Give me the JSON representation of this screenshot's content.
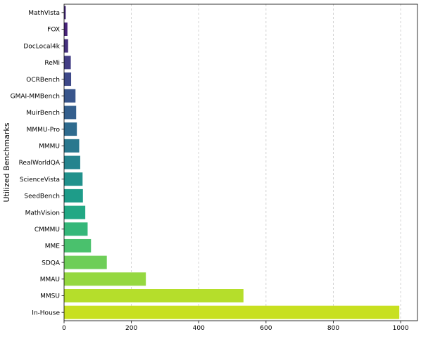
{
  "chart_data": {
    "type": "bar",
    "orientation": "horizontal",
    "title": "",
    "xlabel": "",
    "ylabel": "Utilized Benchmarks",
    "xlim": [
      0,
      1050
    ],
    "xticks": [
      0,
      200,
      400,
      600,
      800,
      1000
    ],
    "grid": "x",
    "legend": "none",
    "palette": "viridis",
    "categories": [
      "MathVista",
      "FOX",
      "DocLocal4k",
      "ReMi",
      "OCRBench",
      "GMAI-MMBench",
      "MuirBench",
      "MMMU-Pro",
      "MMMU",
      "RealWorldQA",
      "ScienceVista",
      "SeedBench",
      "MathVision",
      "CMMMU",
      "MME",
      "SDQA",
      "MMAU",
      "MMSU",
      "In-House"
    ],
    "values": [
      5,
      10,
      12,
      20,
      21,
      34,
      36,
      38,
      45,
      48,
      55,
      56,
      63,
      70,
      80,
      127,
      243,
      533,
      996
    ],
    "colors": [
      "#472d7b",
      "#48247a",
      "#46327e",
      "#433e85",
      "#3e4989",
      "#39568c",
      "#345f8d",
      "#2f6b8e",
      "#2a788e",
      "#25848e",
      "#21918c",
      "#1e9c89",
      "#22a884",
      "#35b779",
      "#4ac16d",
      "#6ece58",
      "#95d840",
      "#b5de2b",
      "#c8e020"
    ]
  }
}
